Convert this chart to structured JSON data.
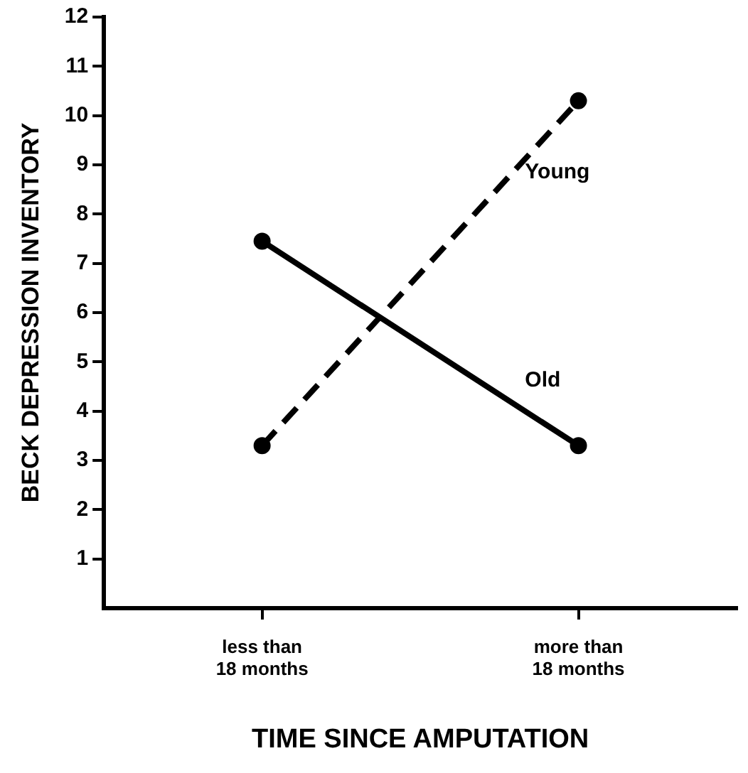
{
  "chart_data": {
    "type": "line",
    "xlabel": "TIME SINCE AMPUTATION",
    "ylabel": "BECK DEPRESSION INVENTORY",
    "categories": [
      "less than\n18 months",
      "more than\n18 months"
    ],
    "series": [
      {
        "name": "Young",
        "color": "#000000",
        "values": [
          3.3,
          10.3
        ],
        "line_style": "dashed"
      },
      {
        "name": "Old",
        "color": "#000000",
        "values": [
          7.45,
          3.3
        ],
        "line_style": "solid"
      }
    ],
    "ylim": [
      0,
      12
    ],
    "yticks": [
      1,
      2,
      3,
      4,
      5,
      6,
      7,
      8,
      9,
      10,
      11,
      12
    ],
    "grid": false,
    "legend": false,
    "marker": "circle"
  }
}
